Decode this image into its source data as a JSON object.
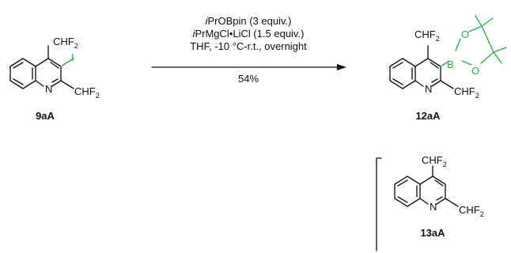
{
  "reagents": {
    "line1_prefix": "i",
    "line1_rest": "PrOBpin (3 equiv.)",
    "line2_prefix": "i",
    "line2_rest": "PrMgCl•LiCl (1.5 equiv.)",
    "line3": "THF, -10 °C-r.t., overnight",
    "yield": "54%"
  },
  "compounds": {
    "start": {
      "id": "9aA",
      "sub_top": "CHF",
      "sub_right": "CHF",
      "hetero_n": "N",
      "iodo": "I"
    },
    "product": {
      "id": "12aA",
      "sub_top": "CHF",
      "sub_right": "CHF",
      "hetero_n": "N",
      "boron": "B",
      "oxygen": "O"
    },
    "byproduct": {
      "id": "13aA",
      "sub_top": "CHF",
      "sub_right": "CHF",
      "hetero_n": "N"
    }
  },
  "subscript": "2",
  "colors": {
    "ink": "#111111",
    "bpin": "#2bb34a",
    "iodine": "#2bb34a"
  }
}
